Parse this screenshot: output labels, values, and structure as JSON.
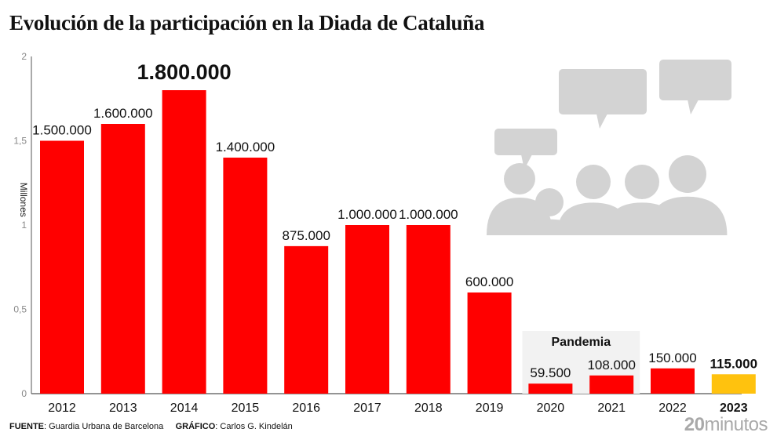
{
  "title": "Evolución de la participación en la Diada de Cataluña",
  "footer": {
    "source_label": "FUENTE",
    "source": "Guardia Urbana de Barcelona",
    "graphic_label": "GRÁFICO",
    "graphic": "Carlos G. Kindelán"
  },
  "brand": {
    "number": "20",
    "name": "minutos"
  },
  "colors": {
    "bar": "#ff0000",
    "highlight_bar": "#ffc20e",
    "illustration": "#d3d3d3",
    "axis": "#555555"
  },
  "chart_data": {
    "type": "bar",
    "title": "Evolución de la participación en la Diada de Cataluña",
    "ylabel": "Millones",
    "xlabel": "",
    "ylim": [
      0,
      2
    ],
    "yticks": [
      0,
      0.5,
      1,
      1.5,
      2
    ],
    "ytick_labels": [
      "0",
      "0,5",
      "1",
      "1,5",
      "2"
    ],
    "categories": [
      "2012",
      "2013",
      "2014",
      "2015",
      "2016",
      "2017",
      "2018",
      "2019",
      "2020",
      "2021",
      "2022",
      "2023"
    ],
    "values": [
      1.5,
      1.6,
      1.8,
      1.4,
      0.875,
      1.0,
      1.0,
      0.6,
      0.0595,
      0.108,
      0.15,
      0.115
    ],
    "value_labels": [
      "1.500.000",
      "1.600.000",
      "1.800.000",
      "1.400.000",
      "875.000",
      "1.000.000",
      "1.000.000",
      "600.000",
      "59.500",
      "108.000",
      "150.000",
      "115.000"
    ],
    "highlight_max_label": "2014",
    "highlight_category": "2023",
    "annotation": {
      "text": "Pandemia",
      "categories": [
        "2020",
        "2021"
      ]
    },
    "grid": false,
    "legend": "none"
  }
}
